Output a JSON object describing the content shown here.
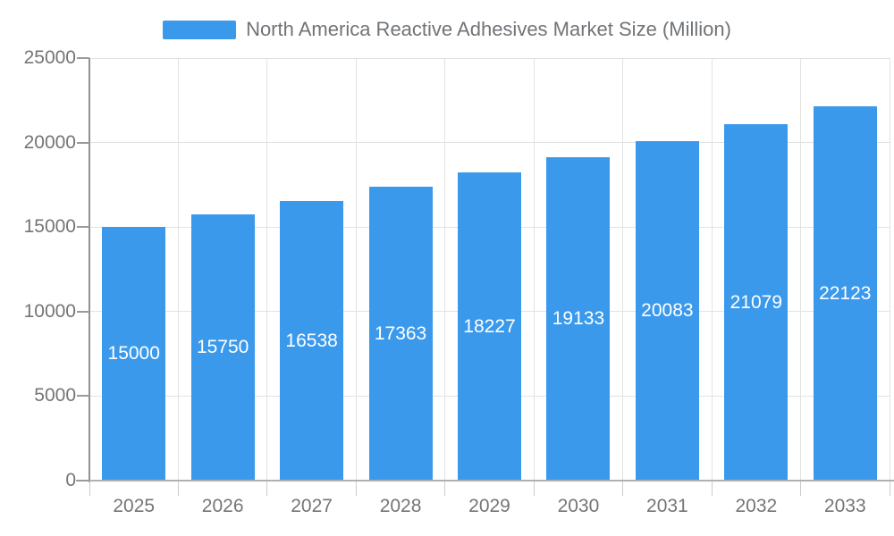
{
  "legend": {
    "label": "North America Reactive Adhesives Market Size (Million)"
  },
  "colors": {
    "bar": "#3B99EC",
    "bar_label_text": "#FFFFFF",
    "grid_line": "#E2E2E2",
    "axis_line": "#909090",
    "x_axis_line": "#B0B0B0",
    "axis_text": "#757575",
    "legend_text": "#707478",
    "background": "#FFFFFF"
  },
  "chart_data": {
    "type": "bar",
    "title": "North America Reactive Adhesives Market Size (Million)",
    "categories": [
      "2025",
      "2026",
      "2027",
      "2028",
      "2029",
      "2030",
      "2031",
      "2032",
      "2033"
    ],
    "values": [
      15000,
      15750,
      16538,
      17363,
      18227,
      19133,
      20083,
      21079,
      22123
    ],
    "bar_value_labels": [
      "15000",
      "15750",
      "16538",
      "17363",
      "18227",
      "19133",
      "20083",
      "21079",
      "22123"
    ],
    "xlabel": "",
    "ylabel": "",
    "ylim": [
      0,
      25000
    ],
    "yticks": [
      0,
      5000,
      10000,
      15000,
      20000,
      25000
    ],
    "ytick_labels": [
      "0",
      "5000",
      "10000",
      "15000",
      "20000",
      "25000"
    ],
    "grid": true,
    "legend_position": "top-center",
    "value_labels_position": "inside-center"
  }
}
